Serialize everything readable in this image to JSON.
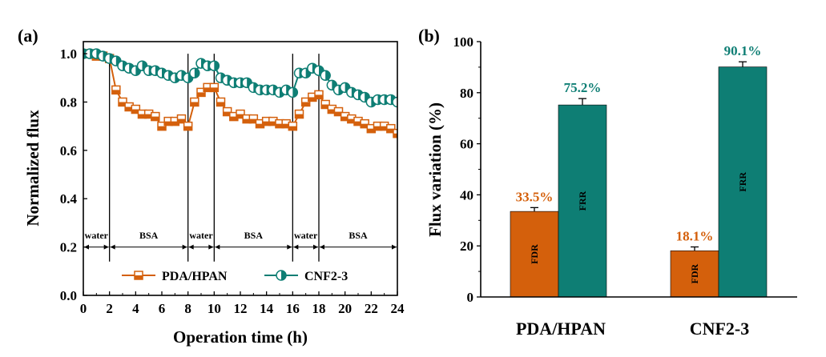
{
  "colors": {
    "pda": "#d4600c",
    "cnf": "#0e7e74",
    "axis": "#000000"
  },
  "chart_data": [
    {
      "type": "line",
      "panel_label": "(a)",
      "xlabel": "Operation time (h)",
      "ylabel": "Normalized flux",
      "xlim": [
        0,
        24
      ],
      "ylim": [
        0.0,
        1.05
      ],
      "xticks": [
        0,
        2,
        4,
        6,
        8,
        10,
        12,
        14,
        16,
        18,
        20,
        22,
        24
      ],
      "yticks": [
        0.0,
        0.2,
        0.4,
        0.6,
        0.8,
        1.0
      ],
      "ytick_labels": [
        "0.0",
        "0.2",
        "0.4",
        "0.6",
        "0.8",
        "1.0"
      ],
      "stage_boundaries": [
        2,
        8,
        10,
        16,
        18
      ],
      "stages": [
        {
          "label": "water",
          "start": 0,
          "end": 2
        },
        {
          "label": "BSA",
          "start": 2,
          "end": 8
        },
        {
          "label": "water",
          "start": 8,
          "end": 10
        },
        {
          "label": "BSA",
          "start": 10,
          "end": 16
        },
        {
          "label": "water",
          "start": 16,
          "end": 18
        },
        {
          "label": "BSA",
          "start": 18,
          "end": 24
        }
      ],
      "legend": [
        "PDA/HPAN",
        "CNF2-3"
      ],
      "series": [
        {
          "name": "PDA/HPAN",
          "x": [
            0,
            0.5,
            1,
            1.5,
            2,
            2.5,
            3,
            3.5,
            4,
            4.5,
            5,
            5.5,
            6,
            6.5,
            7,
            7.5,
            8,
            8.5,
            9,
            9.5,
            10,
            10.5,
            11,
            11.5,
            12,
            12.5,
            13,
            13.5,
            14,
            14.5,
            15,
            15.5,
            16,
            16.5,
            17,
            17.5,
            18,
            18.5,
            19,
            19.5,
            20,
            20.5,
            21,
            21.5,
            22,
            22.5,
            23,
            23.5,
            24
          ],
          "y": [
            1.0,
            1.0,
            0.99,
            0.99,
            0.98,
            0.85,
            0.8,
            0.78,
            0.77,
            0.75,
            0.75,
            0.74,
            0.7,
            0.72,
            0.72,
            0.73,
            0.7,
            0.8,
            0.84,
            0.86,
            0.86,
            0.8,
            0.76,
            0.74,
            0.75,
            0.73,
            0.73,
            0.71,
            0.72,
            0.72,
            0.71,
            0.71,
            0.7,
            0.75,
            0.8,
            0.82,
            0.83,
            0.79,
            0.77,
            0.76,
            0.74,
            0.73,
            0.72,
            0.71,
            0.69,
            0.7,
            0.7,
            0.69,
            0.67
          ]
        },
        {
          "name": "CNF2-3",
          "x": [
            0,
            0.5,
            1,
            1.5,
            2,
            2.5,
            3,
            3.5,
            4,
            4.5,
            5,
            5.5,
            6,
            6.5,
            7,
            7.5,
            8,
            8.5,
            9,
            9.5,
            10,
            10.5,
            11,
            11.5,
            12,
            12.5,
            13,
            13.5,
            14,
            14.5,
            15,
            15.5,
            16,
            16.5,
            17,
            17.5,
            18,
            18.5,
            19,
            19.5,
            20,
            20.5,
            21,
            21.5,
            22,
            22.5,
            23,
            23.5,
            24
          ],
          "y": [
            1.0,
            1.0,
            1.0,
            0.99,
            0.98,
            0.97,
            0.95,
            0.94,
            0.93,
            0.95,
            0.93,
            0.93,
            0.92,
            0.91,
            0.9,
            0.91,
            0.9,
            0.92,
            0.96,
            0.95,
            0.95,
            0.9,
            0.89,
            0.88,
            0.88,
            0.88,
            0.86,
            0.85,
            0.85,
            0.85,
            0.84,
            0.85,
            0.84,
            0.92,
            0.92,
            0.94,
            0.93,
            0.91,
            0.87,
            0.85,
            0.86,
            0.84,
            0.83,
            0.82,
            0.8,
            0.81,
            0.81,
            0.81,
            0.8
          ]
        }
      ]
    },
    {
      "type": "bar",
      "panel_label": "(b)",
      "xlabel": "",
      "ylabel": "Flux variation (%)",
      "ylim": [
        0,
        100
      ],
      "yticks": [
        0,
        20,
        40,
        60,
        80,
        100
      ],
      "categories": [
        "PDA/HPAN",
        "CNF2-3"
      ],
      "series": [
        {
          "name": "FDR",
          "values": [
            33.5,
            18.1
          ],
          "labels": [
            "33.5%",
            "18.1%"
          ],
          "errors": [
            1.5,
            1.5
          ]
        },
        {
          "name": "FRR",
          "values": [
            75.2,
            90.1
          ],
          "labels": [
            "75.2%",
            "90.1%"
          ],
          "errors": [
            2.5,
            2.0
          ]
        }
      ]
    }
  ]
}
